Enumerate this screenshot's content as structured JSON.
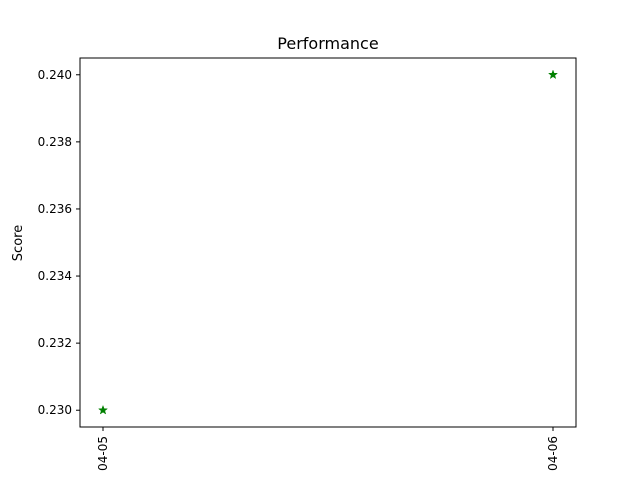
{
  "chart_data": {
    "type": "scatter",
    "title": "Performance",
    "xlabel": "",
    "ylabel": "Score",
    "x": [
      "04-05",
      "04-06"
    ],
    "series": [
      {
        "marker": "star",
        "color": "#008000",
        "values": [
          0.23,
          0.24
        ]
      }
    ],
    "y_ticks": [
      "0.230",
      "0.232",
      "0.234",
      "0.236",
      "0.238",
      "0.240"
    ],
    "ylim": [
      0.2295,
      0.2405
    ],
    "grid": false,
    "legend": "none"
  }
}
